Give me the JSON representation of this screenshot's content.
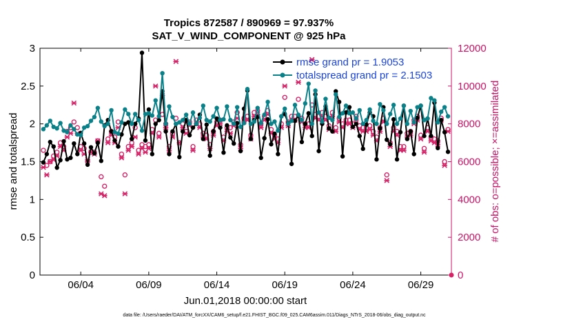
{
  "chart_data": {
    "type": "line",
    "title": "Tropics 872587 / 890969 = 97.937%",
    "subtitle": "SAT_V_WIND_COMPONENT @ 925 hPa",
    "xlabel": "Jun.01,2018 00:00:00 start",
    "ylabel": "rmse and totalspread",
    "ylabel_right": "# of obs: o=possible; ×=assimilated",
    "footer": "data file: /Users/raeder/DAI/ATM_forcXX/CAM6_setup/f.e21.FHIST_BGC.f09_025.CAM6assim.011/Diags_NTrS_2018-06/obs_diag_output.nc",
    "xlim": [
      1.0,
      31.25
    ],
    "ylim": [
      0,
      3
    ],
    "ylim_right": [
      0,
      12000
    ],
    "x_ticks": [
      4,
      9,
      14,
      19,
      24,
      29
    ],
    "x_tick_labels": [
      "06/04",
      "06/09",
      "06/14",
      "06/19",
      "06/24",
      "06/29"
    ],
    "y_ticks": [
      0,
      0.5,
      1,
      1.5,
      2,
      2.5,
      3
    ],
    "y_tick_labels": [
      "0",
      "0.5",
      "1",
      "1.5",
      "2",
      "2.5",
      "3"
    ],
    "y_ticks_right": [
      0,
      2000,
      4000,
      6000,
      8000,
      10000,
      12000
    ],
    "y_tick_labels_right": [
      "0",
      "2000",
      "4000",
      "6000",
      "8000",
      "10000",
      "12000"
    ],
    "x": [
      1.25,
      1.5,
      1.75,
      2,
      2.25,
      2.5,
      2.75,
      3,
      3.25,
      3.5,
      3.75,
      4,
      4.25,
      4.5,
      4.75,
      5,
      5.25,
      5.5,
      5.75,
      6,
      6.25,
      6.5,
      6.75,
      7,
      7.25,
      7.5,
      7.75,
      8,
      8.25,
      8.5,
      8.75,
      9,
      9.25,
      9.5,
      9.75,
      10,
      10.25,
      10.5,
      10.75,
      11,
      11.25,
      11.5,
      11.75,
      12,
      12.25,
      12.5,
      12.75,
      13,
      13.25,
      13.5,
      13.75,
      14,
      14.25,
      14.5,
      14.75,
      15,
      15.25,
      15.5,
      15.75,
      16,
      16.25,
      16.5,
      16.75,
      17,
      17.25,
      17.5,
      17.75,
      18,
      18.25,
      18.5,
      18.75,
      19,
      19.25,
      19.5,
      19.75,
      20,
      20.25,
      20.5,
      20.75,
      21,
      21.25,
      21.5,
      21.75,
      22,
      22.25,
      22.5,
      22.75,
      23,
      23.25,
      23.5,
      23.75,
      24,
      24.25,
      24.5,
      24.75,
      25,
      25.25,
      25.5,
      25.75,
      26,
      26.25,
      26.5,
      26.75,
      27,
      27.25,
      27.5,
      27.75,
      28,
      28.25,
      28.5,
      28.75,
      29,
      29.25,
      29.5,
      29.75,
      30,
      30.25,
      30.5,
      30.75,
      31
    ],
    "series": [
      {
        "name": "rmse grand pr = 1.9053",
        "color": "#000000",
        "marker": "circle",
        "values": [
          1.49,
          1.6,
          1.76,
          1.7,
          1.42,
          1.52,
          1.77,
          1.53,
          1.55,
          1.74,
          1.6,
          1.88,
          1.74,
          1.46,
          1.69,
          1.61,
          1.75,
          1.51,
          1.98,
          2.05,
          1.9,
          1.78,
          1.7,
          1.86,
          2.0,
          2.02,
          1.8,
          2.0,
          2.07,
          2.94,
          1.78,
          2.19,
          1.6,
          2.0,
          2.05,
          2.43,
          1.9,
          1.6,
          1.9,
          2.0,
          1.56,
          1.9,
          2.05,
          1.85,
          1.95,
          2.0,
          2.12,
          1.8,
          1.99,
          1.58,
          1.9,
          2.07,
          1.95,
          1.62,
          1.98,
          1.82,
          1.74,
          2.01,
          1.64,
          2.2,
          2.44,
          1.8,
          2.05,
          2.09,
          1.55,
          1.81,
          2.06,
          1.73,
          1.87,
          1.6,
          2.1,
          2.13,
          2.01,
          1.47,
          2.04,
          2.11,
          1.76,
          2.0,
          2.14,
          1.84,
          2.39,
          1.64,
          2.0,
          2.23,
          1.94,
          1.9,
          2.43,
          2.29,
          1.57,
          2.15,
          2.22,
          1.96,
          2.0,
          1.84,
          1.67,
          1.99,
          2.15,
          2.1,
          1.53,
          1.94,
          2.22,
          1.79,
          1.73,
          2.06,
          1.53,
          1.89,
          2.24,
          1.8,
          1.9,
          1.6,
          2.08,
          2.24,
          1.84,
          2.07,
          1.84,
          2.28,
          1.68,
          2.05,
          1.89,
          1.63
        ]
      },
      {
        "name": "totalspread grand pr = 2.1503",
        "color": "#0a8088",
        "marker": "circle",
        "values": [
          1.93,
          1.98,
          2.04,
          1.96,
          1.94,
          2.01,
          1.91,
          1.89,
          1.98,
          1.93,
          1.86,
          1.85,
          1.95,
          1.97,
          2.04,
          2.09,
          2.21,
          2.03,
          1.97,
          2.0,
          2.18,
          1.89,
          1.87,
          2.02,
          2.19,
          2.13,
          2.0,
          2.13,
          2.05,
          1.91,
          2.13,
          2.14,
          2.11,
          2.31,
          2.1,
          2.67,
          2.0,
          2.23,
          2.09,
          2.0,
          2.02,
          2.05,
          2.12,
          2.0,
          2.15,
          2.0,
          2.08,
          2.24,
          2.05,
          2.03,
          2.1,
          2.21,
          2.05,
          2.06,
          2.23,
          2.05,
          2.0,
          2.22,
          1.96,
          2.01,
          2.46,
          2.0,
          2.03,
          2.21,
          2.01,
          2.12,
          2.29,
          2.0,
          2.03,
          1.91,
          2.1,
          2.2,
          2.0,
          2.04,
          2.25,
          2.12,
          2.05,
          2.27,
          2.53,
          2.0,
          2.44,
          2.15,
          2.03,
          2.33,
          2.08,
          2.05,
          2.39,
          2.09,
          2.14,
          2.24,
          2.14,
          2.15,
          2.07,
          2.18,
          2.0,
          2.05,
          2.19,
          2.04,
          2.0,
          2.26,
          2.18,
          2.0,
          2.13,
          2.25,
          2.0,
          2.07,
          2.24,
          2.0,
          2.17,
          2.02,
          2.22,
          2.24,
          2.05,
          2.07,
          2.34,
          2.31,
          2.02,
          2.16,
          2.22,
          2.1
        ]
      }
    ],
    "obs_series": [
      {
        "name": "possible",
        "color": "#d42266",
        "marker": "o",
        "values": [
          6600,
          5800,
          6000,
          6300,
          6500,
          7000,
          6800,
          7600,
          7800,
          8100,
          7800,
          6800,
          6700,
          6000,
          6500,
          6500,
          7100,
          5200,
          4700,
          7200,
          7600,
          7300,
          8100,
          6400,
          5300,
          6800,
          7000,
          7800,
          6600,
          6900,
          6800,
          6900,
          7700,
          8200,
          7500,
          8500,
          8000,
          6800,
          7500,
          8300,
          7000,
          8000,
          7600,
          8100,
          6800,
          8200,
          8000,
          7500,
          7400,
          6900,
          7600,
          8100,
          8200,
          7300,
          7800,
          7800,
          8100,
          8600,
          6900,
          8300,
          8400,
          7400,
          8600,
          8700,
          8000,
          8400,
          8700,
          7700,
          7400,
          7200,
          8000,
          9400,
          8100,
          8400,
          8400,
          9300,
          8300,
          8000,
          8000,
          9000,
          8500,
          8400,
          8600,
          8400,
          7900,
          8600,
          7800,
          8300,
          8000,
          8200,
          8200,
          8000,
          8400,
          7900,
          7800,
          7800,
          7900,
          7600,
          7300,
          7800,
          8300,
          5300,
          7000,
          7800,
          7600,
          6800,
          6800,
          7500,
          7600,
          8200,
          8400,
          7400,
          6700,
          7800,
          7300,
          7200,
          7100,
          8300,
          6000,
          7700
        ]
      },
      {
        "name": "assimilated",
        "color": "#d42266",
        "marker": "x",
        "values": [
          5700,
          5300,
          6000,
          6100,
          6300,
          6800,
          6600,
          7300,
          7500,
          9100,
          7500,
          6600,
          6400,
          6100,
          6500,
          6400,
          7100,
          4300,
          4200,
          7000,
          7400,
          7000,
          7800,
          6200,
          4300,
          6600,
          6800,
          7300,
          6400,
          6700,
          6500,
          6700,
          7500,
          10000,
          7300,
          9500,
          7800,
          6600,
          7300,
          11300,
          7000,
          7800,
          7500,
          7900,
          6600,
          8000,
          7800,
          7300,
          7200,
          6700,
          7400,
          7900,
          8000,
          7100,
          7600,
          7500,
          7900,
          8300,
          6700,
          8100,
          8200,
          7200,
          8400,
          8500,
          7800,
          8200,
          8500,
          7500,
          7200,
          7000,
          7800,
          10000,
          7900,
          8200,
          8200,
          10200,
          8100,
          7800,
          7800,
          11400,
          8300,
          8200,
          8400,
          8200,
          7700,
          8400,
          7600,
          8100,
          7800,
          8000,
          8000,
          7800,
          8200,
          7700,
          7600,
          7600,
          7700,
          7400,
          7100,
          7600,
          8100,
          5000,
          6800,
          7600,
          7400,
          6600,
          6600,
          7300,
          7400,
          8000,
          8200,
          7200,
          6500,
          7600,
          7100,
          7000,
          6900,
          8200,
          5800,
          7600
        ]
      }
    ],
    "obs_end_point": {
      "x": 31.25,
      "value": 0
    },
    "legend_location": "top-right"
  }
}
